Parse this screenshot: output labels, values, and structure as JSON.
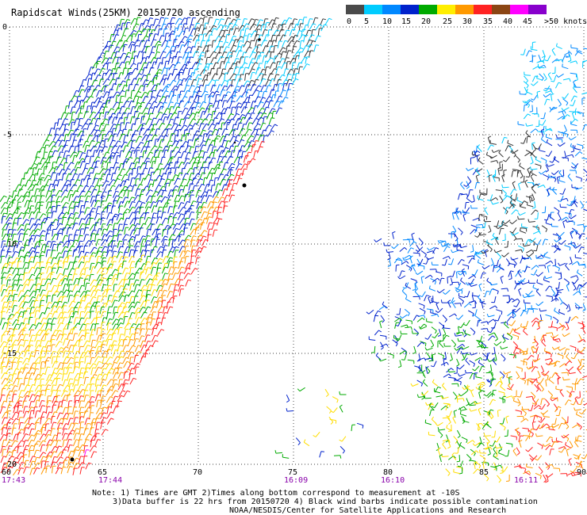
{
  "title": "Rapidscat Winds(25KM) 20150720 ascending",
  "legend": {
    "labels": [
      "0",
      "5",
      "10",
      "15",
      "20",
      "25",
      "30",
      "35",
      "40",
      "45",
      ">50 knots"
    ],
    "colors": [
      "#4a4a4a",
      "#00ccff",
      "#0088ff",
      "#0022cc",
      "#00aa00",
      "#ffee00",
      "#ff9900",
      "#ff2222",
      "#8b4513",
      "#ff00ff",
      "#8800cc"
    ]
  },
  "map": {
    "lon_ticks": [
      "60",
      "65",
      "70",
      "75",
      "80",
      "85",
      "90"
    ],
    "lat_ticks": [
      "0",
      "-5",
      "-10",
      "-15",
      "-20"
    ],
    "times": [
      "17:43",
      "17:44",
      "16:09",
      "16:10",
      "16:11"
    ],
    "time_color": "#8800aa"
  },
  "notes": {
    "line1": "Note: 1) Times are GMT 2)Times along bottom correspond to measurement at -10S",
    "line2": "3)Data buffer is 22 hrs from 20150720 4) Black wind barbs indicate possible contamination",
    "line3": "NOAA/NESDIS/Center for Satellite Applications and Research"
  }
}
